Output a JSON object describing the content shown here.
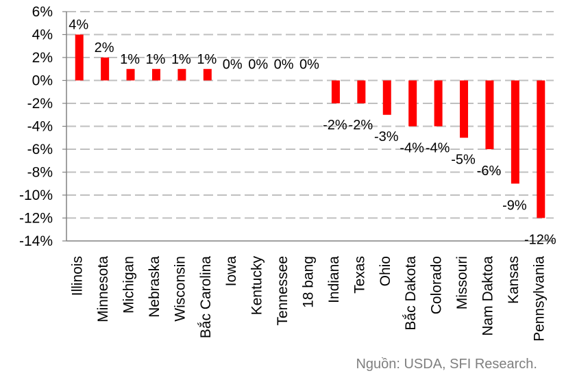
{
  "chart_data": {
    "type": "bar",
    "categories": [
      "Illinois",
      "Minnesota",
      "Michigan",
      "Nebraska",
      "Wisconsin",
      "Bắc Carolina",
      "Iowa",
      "Kentucky",
      "Tennessee",
      "18 bang",
      "Indiana",
      "Texas",
      "Ohio",
      "Bắc Dakota",
      "Colorado",
      "Missouri",
      "Nam Daktoa",
      "Kansas",
      "Pennsylvania"
    ],
    "values": [
      4,
      2,
      1,
      1,
      1,
      1,
      0,
      0,
      0,
      0,
      -2,
      -2,
      -3,
      -4,
      -4,
      -5,
      -6,
      -9,
      -12
    ],
    "data_labels": [
      "4%",
      "2%",
      "1%",
      "1%",
      "1%",
      "1%",
      "0%",
      "0%",
      "0%",
      "0%",
      "-2%",
      "-2%",
      "-3%",
      "-4%",
      "-4%",
      "-5%",
      "-6%",
      "-9%",
      "-12%"
    ],
    "y_ticks": [
      6,
      4,
      2,
      0,
      -2,
      -4,
      -6,
      -8,
      -10,
      -12,
      -14
    ],
    "y_tick_labels": [
      "6%",
      "4%",
      "2%",
      "0%",
      "-2%",
      "-4%",
      "-6%",
      "-8%",
      "-10%",
      "-12%",
      "-14%"
    ],
    "ylim": [
      -14,
      6
    ],
    "title": "",
    "xlabel": "",
    "ylabel": "",
    "grid": true,
    "grid_style": "dashed",
    "legend": false,
    "colors": {
      "bar": "#ff0000",
      "grid": "#bfbfbf",
      "axis": "#808080",
      "source_text": "#7f7f7f"
    }
  },
  "source": "Nguồn: USDA, SFI Research."
}
